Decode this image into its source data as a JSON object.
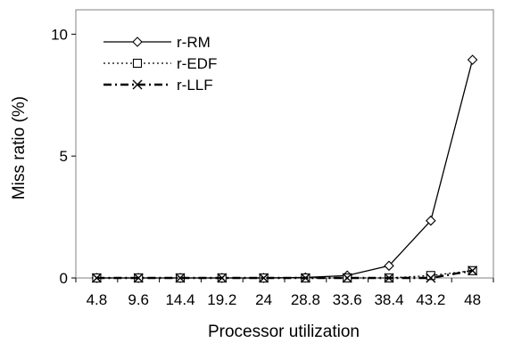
{
  "chart_data": {
    "type": "line",
    "xlabel": "Processor utilization",
    "ylabel": "Miss ratio (%)",
    "categories": [
      "4.8",
      "9.6",
      "14.4",
      "19.2",
      "24",
      "28.8",
      "33.6",
      "38.4",
      "43.2",
      "48"
    ],
    "ylim": [
      0,
      11
    ],
    "yticks": [
      0,
      5,
      10
    ],
    "grid": false,
    "legend_position": "top-left",
    "series": [
      {
        "name": "r-RM",
        "marker": "diamond",
        "line": "solid",
        "values": [
          0,
          0,
          0,
          0,
          0,
          0.02,
          0.1,
          0.5,
          2.35,
          8.95
        ]
      },
      {
        "name": "r-EDF",
        "marker": "square",
        "line": "dotted",
        "values": [
          0,
          0,
          0,
          0,
          0,
          0,
          0,
          0,
          0.1,
          0.3
        ]
      },
      {
        "name": "r-LLF",
        "marker": "x",
        "line": "dash-dot",
        "values": [
          0,
          0,
          0,
          0,
          0,
          0,
          0,
          0,
          0,
          0.3
        ]
      }
    ]
  }
}
